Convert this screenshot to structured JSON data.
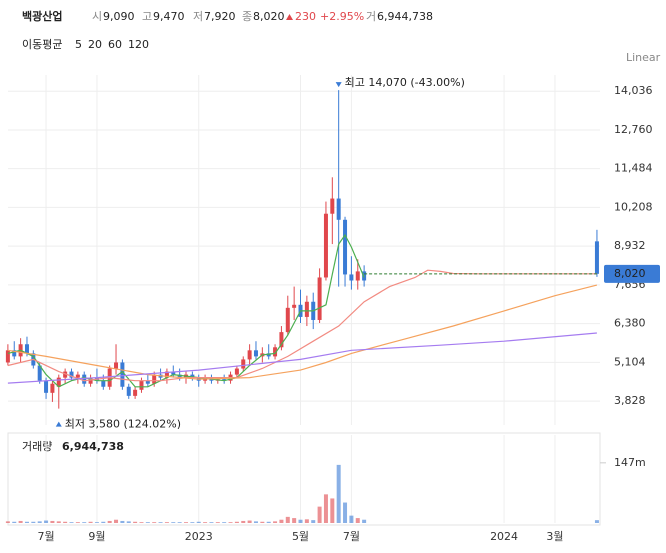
{
  "header": {
    "name": "백광산업",
    "open_label": "시",
    "open": "9,090",
    "high_label": "고",
    "high": "9,470",
    "low_label": "저",
    "low": "7,920",
    "close_label": "종",
    "close": "8,020",
    "change": "230",
    "change_pct": "+2.95%",
    "volume_label": "거",
    "volume": "6,944,738"
  },
  "scale_mode": "Linear",
  "chart_data": {
    "type": "candlestick",
    "xlim": [
      4.19,
      27.77
    ],
    "xticks": [
      {
        "value": 6,
        "label": "7월"
      },
      {
        "value": 8,
        "label": "9월"
      },
      {
        "value": 12,
        "label": "2023"
      },
      {
        "value": 16,
        "label": "5월"
      },
      {
        "value": 18,
        "label": "7월"
      },
      {
        "value": 24,
        "label": "2024"
      },
      {
        "value": 26,
        "label": "3월"
      }
    ],
    "ylim": [
      3040,
      14570
    ],
    "yticks": [
      {
        "value": 3828,
        "label": "3,828"
      },
      {
        "value": 5104,
        "label": "5,104"
      },
      {
        "value": 6380,
        "label": "6,380"
      },
      {
        "value": 7656,
        "label": "7,656"
      },
      {
        "value": 8932,
        "label": "8,932"
      },
      {
        "value": 10208,
        "label": "10,208"
      },
      {
        "value": 11484,
        "label": "11,484"
      },
      {
        "value": 12760,
        "label": "12,760"
      },
      {
        "value": 14036,
        "label": "14,036"
      }
    ],
    "up_color": "#e0474c",
    "down_color": "#3a7bd5",
    "candles": {
      "x": [
        4.5,
        4.75,
        5,
        5.25,
        5.5,
        5.75,
        6,
        6.25,
        6.5,
        6.75,
        7,
        7.25,
        7.5,
        7.75,
        8,
        8.25,
        8.5,
        8.75,
        9,
        9.25,
        9.5,
        9.75,
        10,
        10.25,
        10.5,
        10.75,
        11,
        11.25,
        11.5,
        11.75,
        12,
        12.25,
        12.5,
        12.75,
        13,
        13.25,
        13.5,
        13.75,
        14,
        14.25,
        14.5,
        14.75,
        15,
        15.25,
        15.5,
        15.75,
        16,
        16.25,
        16.5,
        16.75,
        17,
        17.25,
        17.5,
        17.75,
        18,
        18.25,
        18.5,
        27.65
      ],
      "open": [
        5100,
        5500,
        5300,
        5700,
        5400,
        5000,
        4500,
        4100,
        4300,
        4600,
        4800,
        4600,
        4700,
        4400,
        4600,
        4500,
        4300,
        4900,
        5100,
        4300,
        4000,
        4200,
        4500,
        4400,
        4700,
        4600,
        4800,
        4700,
        4600,
        4700,
        4600,
        4500,
        4600,
        4500,
        4550,
        4500,
        4700,
        4900,
        5200,
        5500,
        5300,
        5400,
        5300,
        5600,
        6100,
        6900,
        7000,
        6600,
        7100,
        6500,
        7900,
        10000,
        10500,
        9800,
        8000,
        7800,
        8100,
        9090
      ],
      "high": [
        5700,
        5800,
        5900,
        5950,
        5500,
        5100,
        4600,
        4500,
        4700,
        4900,
        4900,
        4800,
        4800,
        4700,
        4900,
        4700,
        5000,
        5700,
        5200,
        4400,
        4300,
        4600,
        4700,
        4800,
        4900,
        4900,
        5000,
        4900,
        4800,
        4800,
        4700,
        4700,
        4700,
        4600,
        4700,
        4800,
        5000,
        5300,
        5700,
        5800,
        5600,
        5700,
        5700,
        6300,
        7300,
        7600,
        7500,
        7300,
        7400,
        8200,
        10400,
        11200,
        14070,
        9900,
        8600,
        8500,
        8300,
        9470
      ],
      "low": [
        5000,
        5200,
        5100,
        5300,
        4900,
        4400,
        3900,
        3800,
        3580,
        4400,
        4500,
        4400,
        4300,
        4300,
        4400,
        4200,
        4200,
        4700,
        4200,
        3900,
        3900,
        4100,
        4300,
        4300,
        4500,
        4400,
        4600,
        4500,
        4400,
        4500,
        4300,
        4400,
        4400,
        4400,
        4400,
        4400,
        4600,
        4800,
        5000,
        5200,
        5100,
        5200,
        5200,
        5500,
        6000,
        6500,
        6400,
        6300,
        6200,
        6400,
        7800,
        9000,
        7600,
        7600,
        7500,
        7500,
        7600,
        7920
      ],
      "close": [
        5500,
        5300,
        5700,
        5400,
        5000,
        4500,
        4100,
        4400,
        4600,
        4800,
        4600,
        4700,
        4400,
        4600,
        4500,
        4300,
        4900,
        5100,
        4300,
        4000,
        4200,
        4500,
        4400,
        4700,
        4600,
        4800,
        4700,
        4600,
        4700,
        4600,
        4500,
        4600,
        4500,
        4550,
        4500,
        4700,
        4900,
        5200,
        5500,
        5300,
        5400,
        5300,
        5600,
        6100,
        6900,
        7000,
        6600,
        7100,
        6500,
        7900,
        10000,
        10500,
        9800,
        8000,
        7800,
        8100,
        7800,
        8020
      ],
      "volume": [
        4000000,
        3000000,
        5000000,
        3000000,
        3000000,
        4000000,
        6000000,
        5000000,
        4000000,
        3000000,
        2000000,
        2000000,
        2000000,
        3000000,
        2000000,
        3000000,
        5000000,
        8000000,
        5000000,
        4000000,
        3000000,
        2000000,
        2000000,
        2000000,
        2000000,
        2000000,
        2000000,
        2000000,
        2000000,
        2000000,
        3000000,
        2000000,
        2000000,
        2000000,
        2000000,
        2000000,
        3000000,
        5000000,
        6000000,
        4000000,
        3000000,
        3000000,
        4000000,
        8000000,
        15000000,
        12000000,
        8000000,
        9000000,
        7000000,
        40000000,
        70000000,
        60000000,
        142000000,
        50000000,
        18000000,
        12000000,
        8000000,
        6944738
      ]
    },
    "last_price_label": "8,020",
    "moving_averages": {
      "title": "이동평균",
      "series": [
        {
          "name": "5",
          "color": "#4caf50",
          "x": [
            4.5,
            5,
            5.5,
            6,
            6.5,
            7,
            7.5,
            8,
            8.5,
            9,
            9.5,
            10,
            10.5,
            11,
            11.5,
            12,
            12.5,
            13,
            13.5,
            14,
            14.5,
            15,
            15.5,
            16,
            16.5,
            17,
            17.25,
            17.5,
            17.75,
            18,
            18.25,
            18.5
          ],
          "values": [
            5400,
            5500,
            5300,
            4700,
            4300,
            4500,
            4600,
            4500,
            4500,
            4800,
            4300,
            4300,
            4500,
            4700,
            4650,
            4600,
            4550,
            4500,
            4600,
            5000,
            5350,
            5400,
            6000,
            6800,
            6800,
            7000,
            8000,
            9000,
            9300,
            8900,
            8400,
            7900
          ]
        },
        {
          "name": "20",
          "color": "#f28b82",
          "x": [
            4.5,
            5.5,
            6.5,
            7.5,
            8.5,
            9.5,
            10.5,
            11.5,
            12.5,
            13.5,
            14.5,
            15.5,
            16.5,
            17.5,
            18.5,
            19.5,
            20.5,
            21,
            21.5,
            22,
            23,
            25,
            27.65
          ],
          "values": [
            5000,
            5200,
            4800,
            4500,
            4600,
            4500,
            4500,
            4600,
            4600,
            4600,
            4900,
            5300,
            5800,
            6300,
            7100,
            7600,
            7900,
            8140,
            8100,
            8030,
            8020,
            8020,
            8020
          ]
        },
        {
          "name": "60",
          "color": "#f5a25d",
          "x": [
            4.5,
            6,
            8,
            10,
            12,
            14,
            16,
            17,
            18,
            20,
            22,
            24,
            26,
            27.65
          ],
          "values": [
            5500,
            5300,
            5000,
            4700,
            4550,
            4600,
            4850,
            5100,
            5400,
            5850,
            6300,
            6800,
            7300,
            7650
          ]
        },
        {
          "name": "120",
          "color": "#a57cf0",
          "x": [
            4.5,
            8,
            12,
            16,
            18,
            21.5,
            24,
            27.65
          ],
          "values": [
            4420,
            4600,
            4850,
            5200,
            5500,
            5670,
            5800,
            6070
          ]
        }
      ]
    },
    "annotations": {
      "high": "최고 14,070 (-43.00%)",
      "low": "최저 3,580 (124.02%)"
    },
    "volume_panel": {
      "title": "거래량",
      "label": "6,944,738",
      "ylim": [
        0,
        215000000
      ],
      "yticks": [
        {
          "value": 147000000,
          "label": "147m"
        }
      ]
    }
  }
}
